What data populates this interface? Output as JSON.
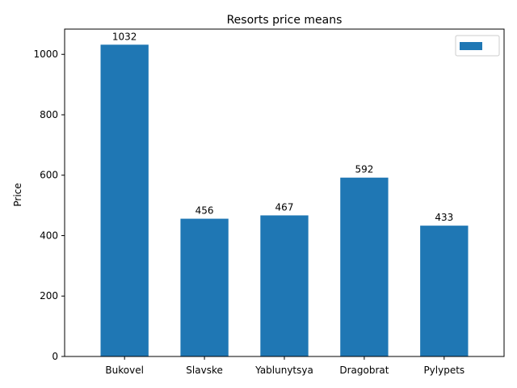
{
  "chart_data": {
    "type": "bar",
    "title": "Resorts price means",
    "xlabel": "",
    "ylabel": "Price",
    "categories": [
      "Bukovel",
      "Slavske",
      "Yablunytsya",
      "Dragobrat",
      "Pylypets"
    ],
    "values": [
      1032,
      456,
      467,
      592,
      433
    ],
    "value_labels": [
      "1032",
      "456",
      "467",
      "592",
      "433"
    ],
    "ylim": [
      0,
      1083.6
    ],
    "yticks": [
      0,
      200,
      400,
      600,
      800,
      1000
    ],
    "ytick_labels": [
      "0",
      "200",
      "400",
      "600",
      "800",
      "1000"
    ],
    "bar_color": "#1f77b4",
    "grid": false,
    "legend": {
      "placement": "upper right",
      "entries": [
        {
          "label": "",
          "color": "#1f77b4"
        }
      ]
    }
  }
}
